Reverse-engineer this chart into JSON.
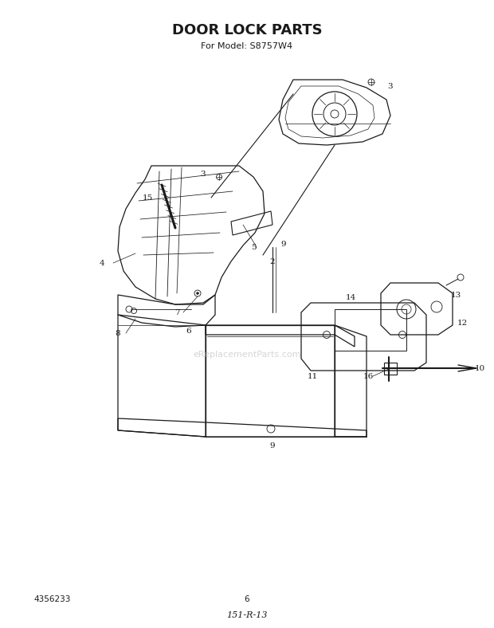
{
  "title": "DOOR LOCK PARTS",
  "subtitle": "For Model: S8757W4",
  "part_number": "4356233",
  "page_number": "6",
  "handwritten": "151-R-13",
  "watermark": "eReplacementParts.com",
  "bg_color": "#ffffff",
  "line_color": "#1a1a1a",
  "label_color": "#1a1a1a",
  "watermark_color": "#bbbbbb",
  "title_fontsize": 13,
  "subtitle_fontsize": 8,
  "label_fontsize": 7.5,
  "footer_fontsize": 7.5
}
